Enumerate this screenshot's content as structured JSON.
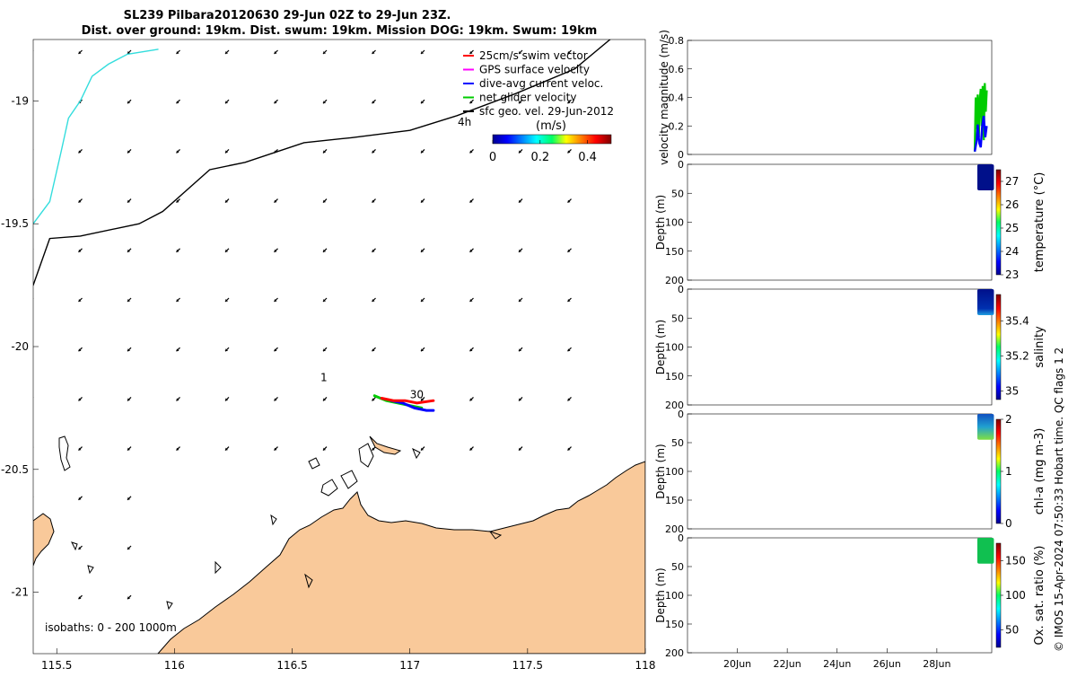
{
  "title": {
    "line1": "SL239 Pilbara20120630 29-Jun 02Z to 29-Jun 23Z.",
    "line2": "Dist. over ground: 19km. Dist. swum: 19km. Mission DOG: 19km. Swum: 19km"
  },
  "side_note": "© IMOS 15-Apr-2024 07:50:33 Hobart time. QC flags 1  2",
  "colors": {
    "land": "#f9c99a",
    "coast": "#000000",
    "track_cyan": "#33dddd",
    "swim_vector": "#ff0000",
    "gps_velocity": "#ff00ff",
    "current": "#0000ff",
    "net_velocity": "#00cc00",
    "geo_velocity": "#000000"
  },
  "map": {
    "legend": [
      {
        "label": "25cm/s swim vector",
        "color": "#ff0000"
      },
      {
        "label": "GPS surface velocity",
        "color": "#ff00ff"
      },
      {
        "label": "dive-avg current veloc.",
        "color": "#0000ff"
      },
      {
        "label": "net glider velocity",
        "color": "#00cc00"
      },
      {
        "label": "sfc geo. vel. 29-Jun-2012",
        "color": "#000000"
      }
    ],
    "time_note": "4h",
    "colorbar": {
      "label": "(m/s)",
      "ticks": [
        "0",
        "0.2",
        "0.4"
      ],
      "range": [
        0,
        0.5
      ]
    },
    "annotations": [
      {
        "text": "1",
        "lon": 116.62,
        "lat": -20.14
      },
      {
        "text": "30",
        "lon": 117.0,
        "lat": -20.21
      }
    ],
    "isobath_label": "isobaths: 0 - 200 1000m"
  },
  "chart_data": [
    {
      "type": "scatter",
      "title": "",
      "xlabel": "",
      "ylabel": "",
      "xlim": [
        115.4,
        118
      ],
      "ylim": [
        -21.25,
        -18.75
      ],
      "x_ticks": [
        "115.5",
        "116",
        "116.5",
        "117",
        "117.5",
        "118"
      ],
      "y_ticks": [
        "-19",
        "-19.5",
        "-20",
        "-20.5",
        "-21"
      ],
      "x_tick_values": [
        115.5,
        116,
        116.5,
        117,
        117.5,
        118
      ],
      "y_tick_values": [
        -19,
        -19.5,
        -20,
        -20.5,
        -21
      ],
      "grid": false,
      "series": [
        {
          "name": "",
          "type": "line",
          "color": "#33dddd",
          "x": [
            115.4,
            115.47,
            115.52,
            115.55,
            115.6,
            115.65,
            115.72,
            115.8,
            115.93
          ],
          "y": [
            -19.5,
            -19.41,
            -19.2,
            -19.07,
            -19.0,
            -18.9,
            -18.85,
            -18.81,
            -18.79
          ]
        },
        {
          "name": "",
          "type": "line",
          "color": "#000000",
          "x": [
            115.4,
            115.47,
            115.6,
            115.85,
            115.95,
            116.15,
            116.3,
            116.55,
            116.75,
            117.0,
            117.2,
            117.45,
            117.7,
            117.85
          ],
          "y": [
            -19.75,
            -19.56,
            -19.55,
            -19.5,
            -19.45,
            -19.28,
            -19.25,
            -19.17,
            -19.15,
            -19.12,
            -19.06,
            -18.97,
            -18.87,
            -18.75
          ]
        },
        {
          "name": "",
          "type": "track",
          "color": "#00cc00",
          "x": [
            116.85,
            116.9,
            116.95,
            117.0,
            117.05
          ],
          "y": [
            -20.2,
            -20.22,
            -20.23,
            -20.24,
            -20.25
          ]
        },
        {
          "name": "",
          "type": "track",
          "color": "#0000ff",
          "x": [
            116.92,
            116.97,
            117.02,
            117.07,
            117.1
          ],
          "y": [
            -20.22,
            -20.23,
            -20.25,
            -20.26,
            -20.26
          ]
        },
        {
          "name": "",
          "type": "track",
          "color": "#ff0000",
          "x": [
            116.88,
            116.93,
            116.98,
            117.03,
            117.1
          ],
          "y": [
            -20.21,
            -20.22,
            -20.22,
            -20.23,
            -20.22
          ]
        }
      ]
    },
    {
      "type": "line",
      "title": "",
      "xlabel": "",
      "ylabel": "velocity magnitude (m/s)",
      "ylim": [
        0,
        0.8
      ],
      "y_ticks": [
        "0",
        "0.2",
        "0.4",
        "0.6",
        "0.8"
      ],
      "grid": false,
      "series": [
        {
          "name": "",
          "color": "#00cc00",
          "x": [
            29.52,
            29.56,
            29.6,
            29.64,
            29.68,
            29.72,
            29.76,
            29.8,
            29.84,
            29.88,
            29.92,
            29.96,
            30.0
          ],
          "y": [
            0.02,
            0.4,
            0.18,
            0.42,
            0.12,
            0.38,
            0.46,
            0.2,
            0.48,
            0.1,
            0.5,
            0.3,
            0.45
          ]
        },
        {
          "name": "",
          "color": "#0000ff",
          "x": [
            29.52,
            29.6,
            29.64,
            29.7,
            29.76,
            29.82,
            29.88,
            29.94,
            30.0
          ],
          "y": [
            0.02,
            0.1,
            0.21,
            0.08,
            0.05,
            0.2,
            0.27,
            0.12,
            0.2
          ]
        }
      ]
    },
    {
      "type": "heatmap",
      "ylabel": "Depth (m)",
      "ylim": [
        200,
        0
      ],
      "y_ticks": [
        "0",
        "50",
        "100",
        "150",
        "200"
      ],
      "colorbar_label": "temperature (°C)",
      "colorbar_ticks": [
        "27",
        "26",
        "25",
        "24",
        "23"
      ],
      "colorbar_range": [
        23,
        27.5
      ],
      "x_range": [
        29.55,
        30.0
      ],
      "depth_range": [
        0,
        45
      ]
    },
    {
      "type": "heatmap",
      "ylabel": "Depth (m)",
      "ylim": [
        200,
        0
      ],
      "y_ticks": [
        "0",
        "50",
        "100",
        "150",
        "200"
      ],
      "colorbar_label": "salinity",
      "colorbar_ticks": [
        "35.4",
        "35.2",
        "35"
      ],
      "colorbar_range": [
        34.95,
        35.55
      ],
      "x_range": [
        29.55,
        30.0
      ],
      "depth_range": [
        0,
        45
      ]
    },
    {
      "type": "heatmap",
      "ylabel": "Depth (m)",
      "ylim": [
        200,
        0
      ],
      "y_ticks": [
        "0",
        "50",
        "100",
        "150",
        "200"
      ],
      "colorbar_label": "chl-a (mg m-3)",
      "colorbar_ticks": [
        "2",
        "1",
        "0"
      ],
      "colorbar_range": [
        0,
        2
      ],
      "x_range": [
        29.55,
        30.0
      ],
      "depth_range": [
        0,
        45
      ]
    },
    {
      "type": "heatmap",
      "ylabel": "Depth (m)",
      "ylim": [
        200,
        0
      ],
      "y_ticks": [
        "0",
        "50",
        "100",
        "150",
        "200"
      ],
      "colorbar_label": "Ox. sat. ratio (%)",
      "colorbar_ticks": [
        "150",
        "100",
        "50"
      ],
      "colorbar_range": [
        25,
        175
      ],
      "x_range": [
        29.55,
        30.0
      ],
      "depth_range": [
        0,
        45
      ],
      "x_ticks": [
        "20Jun",
        "22Jun",
        "24Jun",
        "26Jun",
        "28Jun"
      ],
      "x_tick_values": [
        20,
        22,
        24,
        26,
        28
      ],
      "xlim": [
        18,
        30.2
      ]
    }
  ]
}
